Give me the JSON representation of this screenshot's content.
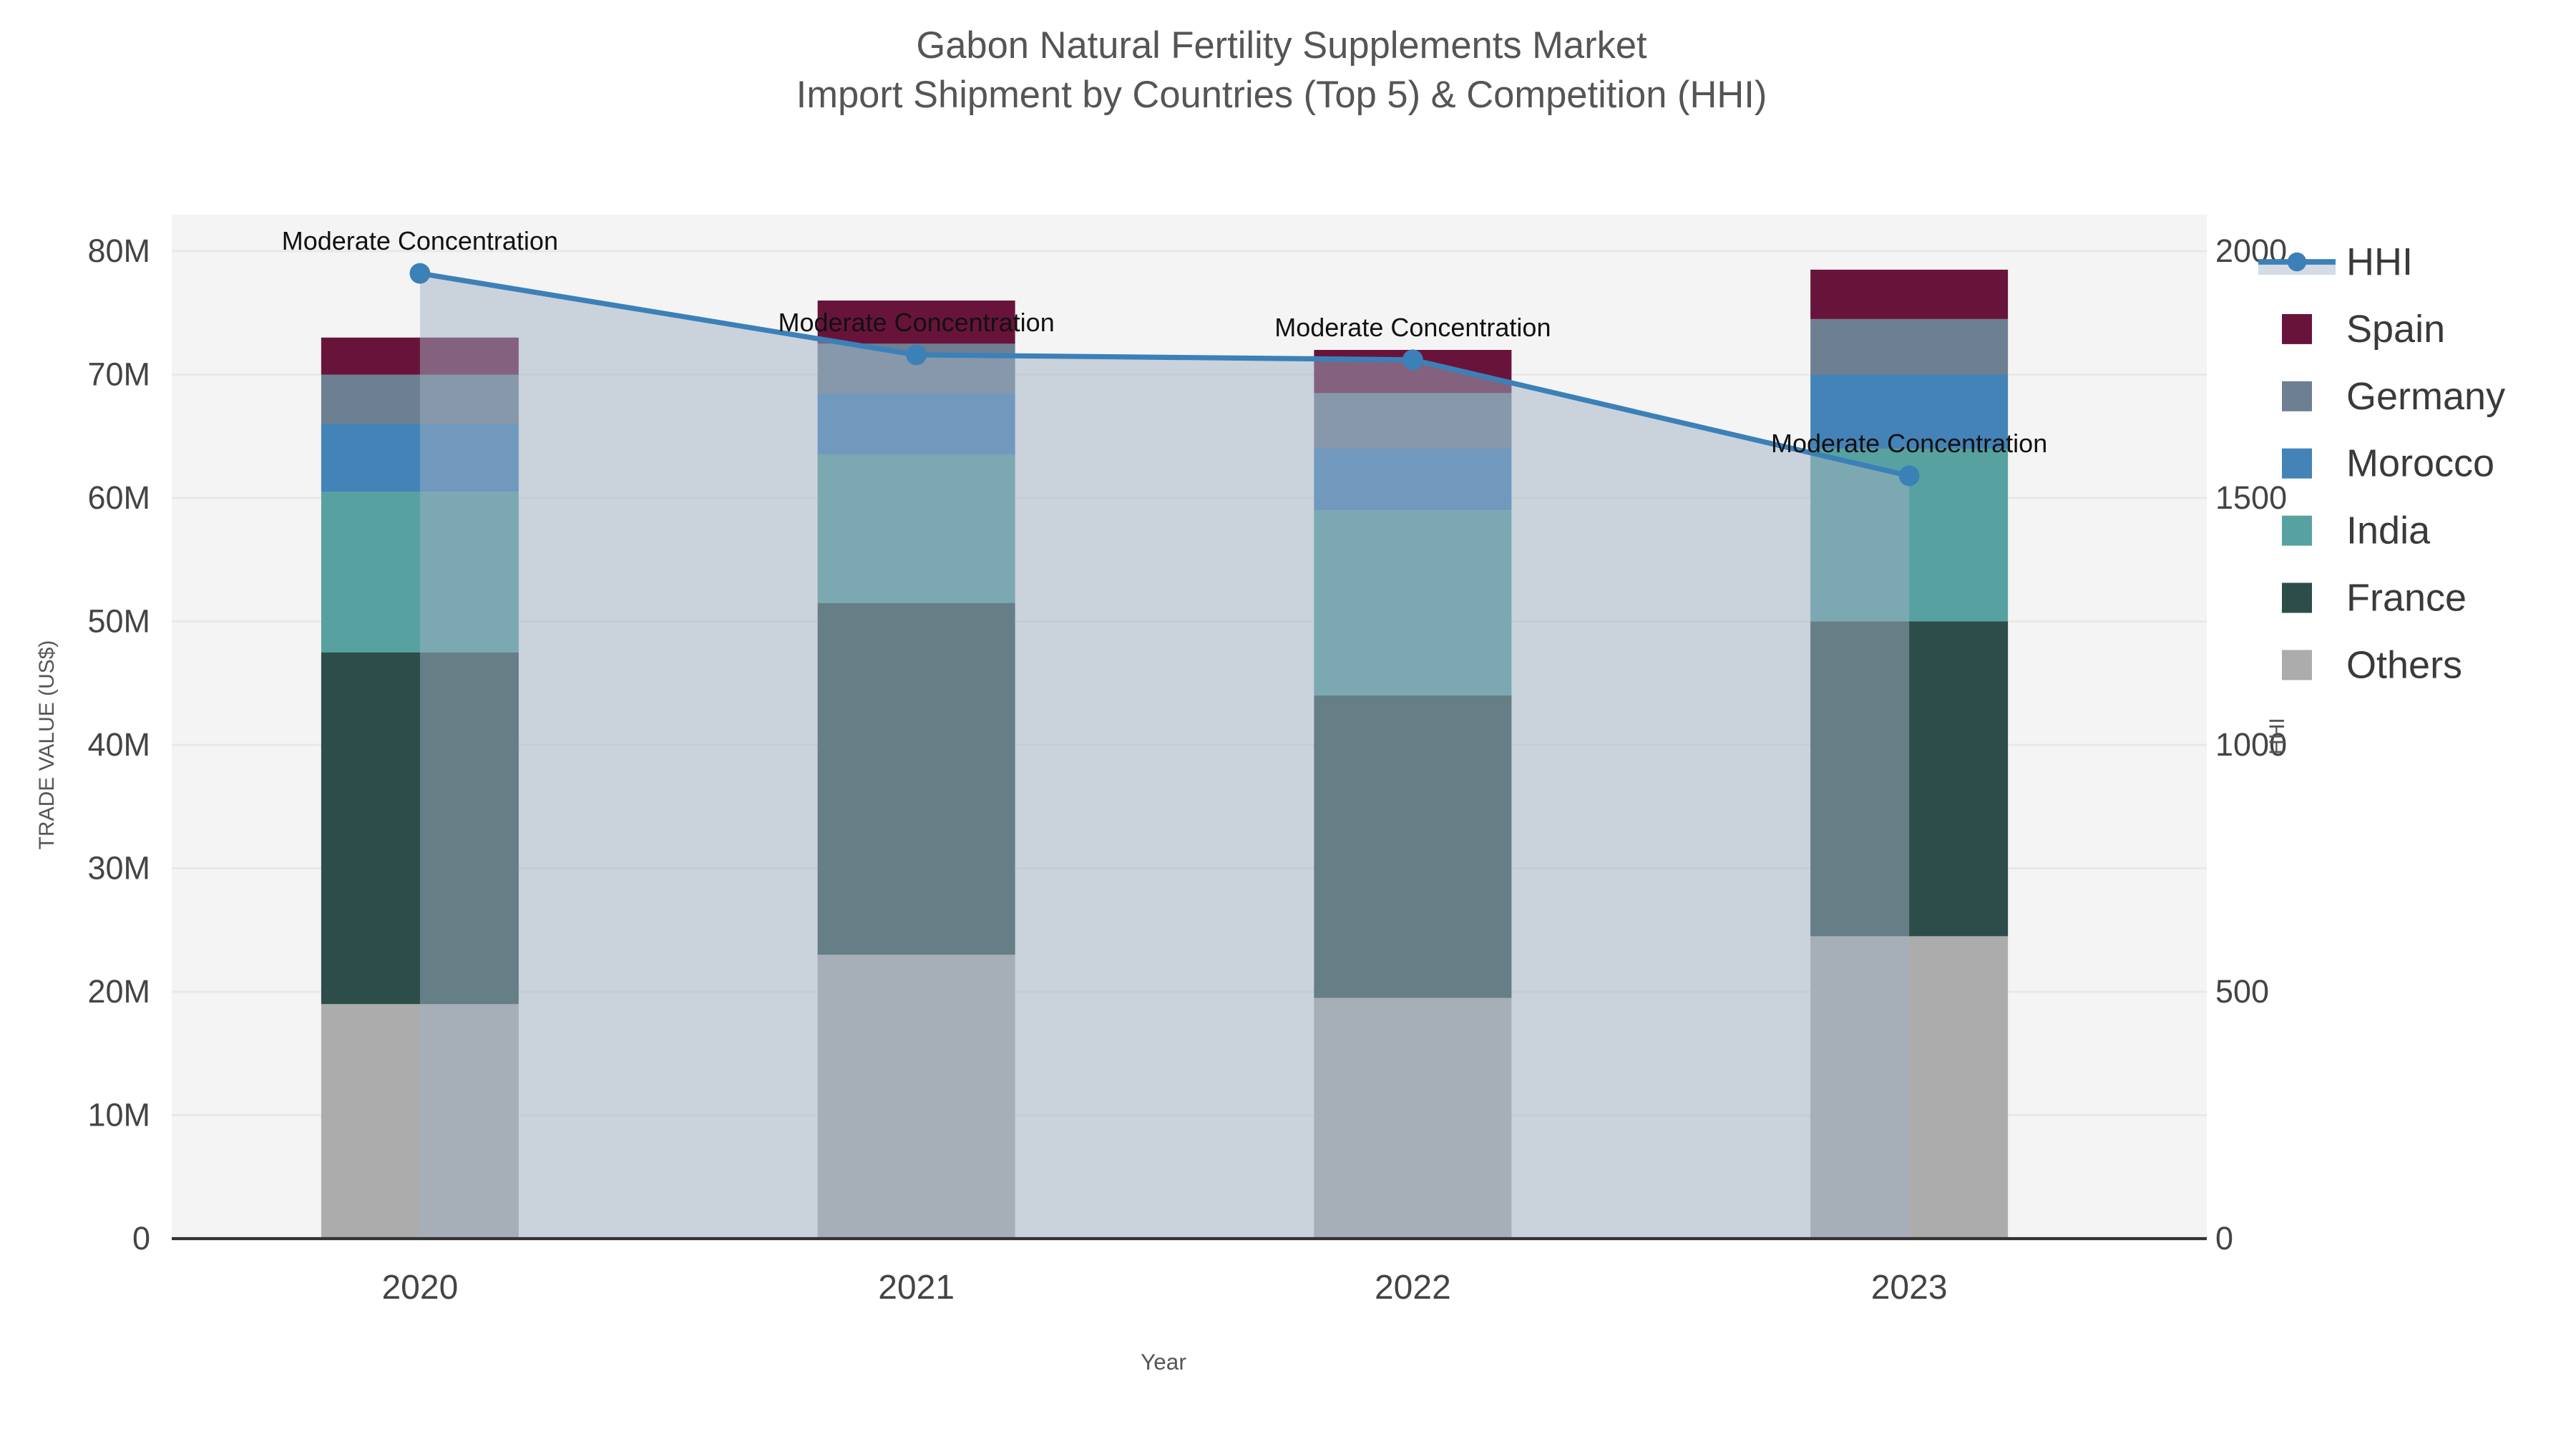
{
  "title": {
    "line1": "Gabon Natural Fertility Supplements Market",
    "line2": "Import Shipment by Countries (Top 5) & Competition (HHI)"
  },
  "chart_data": {
    "type": "bar",
    "subtype": "stacked-bar-with-line",
    "categories": [
      "2020",
      "2021",
      "2022",
      "2023"
    ],
    "value_unit": "M US$",
    "series": [
      {
        "name": "Others",
        "values": [
          19,
          23,
          19.5,
          24.5
        ],
        "color": "#acacac"
      },
      {
        "name": "France",
        "values": [
          28.5,
          28.5,
          24.5,
          25.5
        ],
        "color": "#2c4d49"
      },
      {
        "name": "India",
        "values": [
          13,
          12,
          15,
          14
        ],
        "color": "#58a1a1"
      },
      {
        "name": "Morocco",
        "values": [
          5.5,
          5,
          5,
          6
        ],
        "color": "#4383b7"
      },
      {
        "name": "Germany",
        "values": [
          4,
          4,
          4.5,
          4.5
        ],
        "color": "#6d8091"
      },
      {
        "name": "Spain",
        "values": [
          3,
          3.5,
          3.5,
          4
        ],
        "color": "#68143a"
      }
    ],
    "stack_totals": [
      73,
      76,
      72,
      78.5
    ],
    "line_series": {
      "name": "HHI",
      "values": [
        1955,
        1790,
        1780,
        1545
      ],
      "color": "#3c80b8",
      "band_color": "#9fb0c4",
      "band_opacity": 0.5
    },
    "annotations": [
      {
        "x": "2020",
        "text": "Moderate Concentration"
      },
      {
        "x": "2021",
        "text": "Moderate Concentration"
      },
      {
        "x": "2022",
        "text": "Moderate Concentration"
      },
      {
        "x": "2023",
        "text": "Moderate Concentration"
      }
    ],
    "xlabel": "Year",
    "ylabel_left": "TRADE VALUE (US$)",
    "ylabel_right": "HHI",
    "ylim_left_millions": [
      0,
      80
    ],
    "ylim_right": [
      0,
      2000
    ],
    "yticks_left": [
      "0",
      "10M",
      "20M",
      "30M",
      "40M",
      "50M",
      "60M",
      "70M",
      "80M"
    ],
    "yticks_right": [
      "0",
      "500",
      "1000",
      "1500",
      "2000"
    ],
    "grid": "horizontal",
    "legend_position": "right",
    "legend_order": [
      "HHI",
      "Spain",
      "Germany",
      "Morocco",
      "India",
      "France",
      "Others"
    ],
    "plot_bg_color": "#f4f4f4",
    "grid_color": "#e8e8e8",
    "axis_line_color": "#333333"
  }
}
